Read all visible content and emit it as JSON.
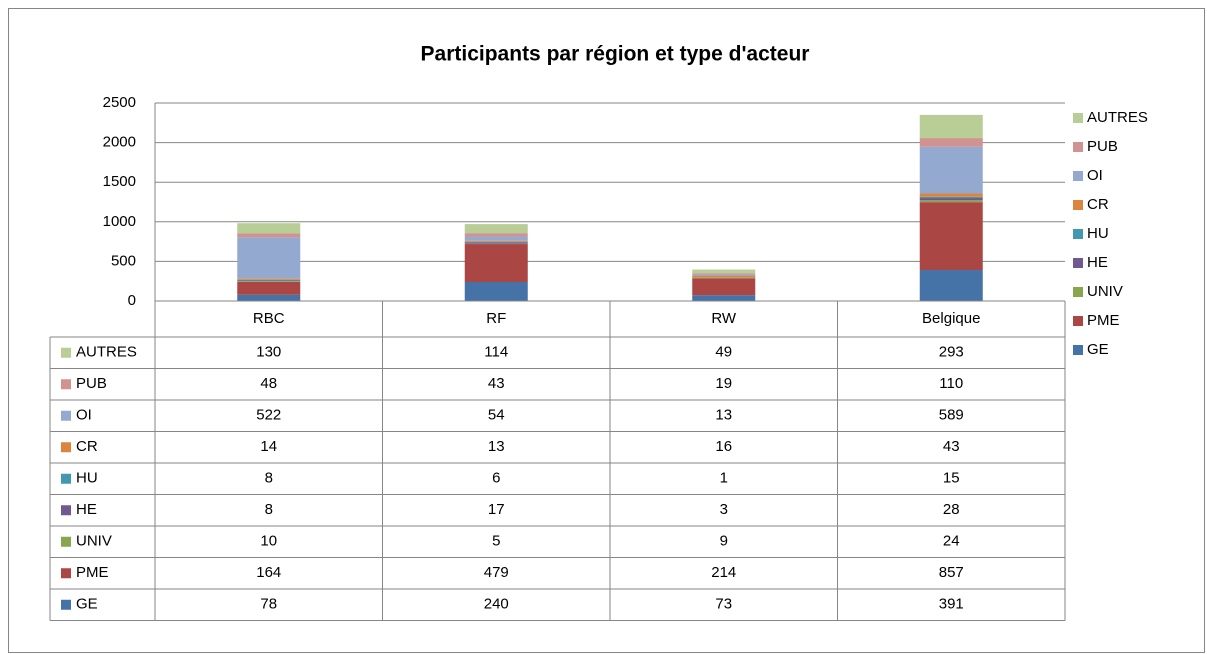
{
  "chart_data": {
    "type": "stacked_bar",
    "title": "Participants par région et type d'acteur",
    "categories": [
      "RBC",
      "RF",
      "RW",
      "Belgique"
    ],
    "series": [
      {
        "name": "GE",
        "color": "#4572a7",
        "values": [
          78,
          240,
          73,
          391
        ]
      },
      {
        "name": "PME",
        "color": "#aa4643",
        "values": [
          164,
          479,
          214,
          857
        ]
      },
      {
        "name": "UNIV",
        "color": "#89a54e",
        "values": [
          10,
          5,
          9,
          24
        ]
      },
      {
        "name": "HE",
        "color": "#71588f",
        "values": [
          8,
          17,
          3,
          28
        ]
      },
      {
        "name": "HU",
        "color": "#4198af",
        "values": [
          8,
          6,
          1,
          15
        ]
      },
      {
        "name": "CR",
        "color": "#db843d",
        "values": [
          14,
          13,
          16,
          43
        ]
      },
      {
        "name": "OI",
        "color": "#93a9cf",
        "values": [
          522,
          54,
          13,
          589
        ]
      },
      {
        "name": "PUB",
        "color": "#d19392",
        "values": [
          48,
          43,
          19,
          110
        ]
      },
      {
        "name": "AUTRES",
        "color": "#b9cd96",
        "values": [
          130,
          114,
          49,
          293
        ]
      }
    ],
    "ylim": [
      0,
      2500
    ],
    "yticks": [
      0,
      500,
      1000,
      1500,
      2000,
      2500
    ],
    "grid": true,
    "legend": "right"
  }
}
